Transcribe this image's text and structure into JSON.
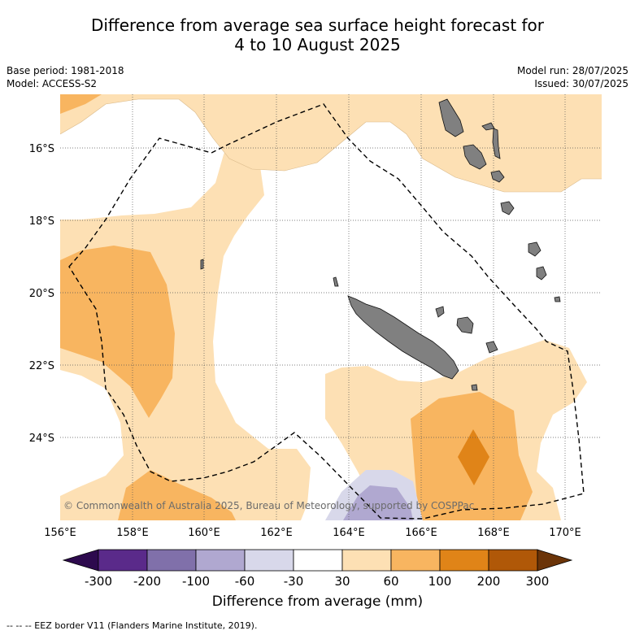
{
  "title": {
    "line1": "Difference from average sea surface height forecast for",
    "line2": "4 to 10 August 2025"
  },
  "meta_left": {
    "base_period": "Base period: 1981-2018",
    "model": "Model: ACCESS-S2"
  },
  "meta_right": {
    "model_run": "Model run: 28/07/2025",
    "issued": "Issued: 30/07/2025"
  },
  "map": {
    "longitudes": [
      "156°E",
      "158°E",
      "160°E",
      "162°E",
      "164°E",
      "166°E",
      "168°E",
      "170°E"
    ],
    "latitudes": [
      "16°S",
      "18°S",
      "20°S",
      "22°S",
      "24°S"
    ],
    "copyright": "© Commonwealth of Australia 2025, Bureau of Meteorology, supported by COSPPac",
    "land_color": "#808080"
  },
  "colorbar": {
    "ticks": [
      "-300",
      "-200",
      "-100",
      "-60",
      "-30",
      "30",
      "60",
      "100",
      "200",
      "300"
    ],
    "colors": [
      "#2d0a4e",
      "#5a2a8a",
      "#8070aa",
      "#b0a8d0",
      "#d8d8ea",
      "#ffffff",
      "#fde0b4",
      "#f8b560",
      "#e08418",
      "#b05808",
      "#6b3408"
    ],
    "title": "Difference from average (mm)"
  },
  "legend_note": "--  --  -- EEZ border V11 (Flanders Marine Institute, 2019)."
}
